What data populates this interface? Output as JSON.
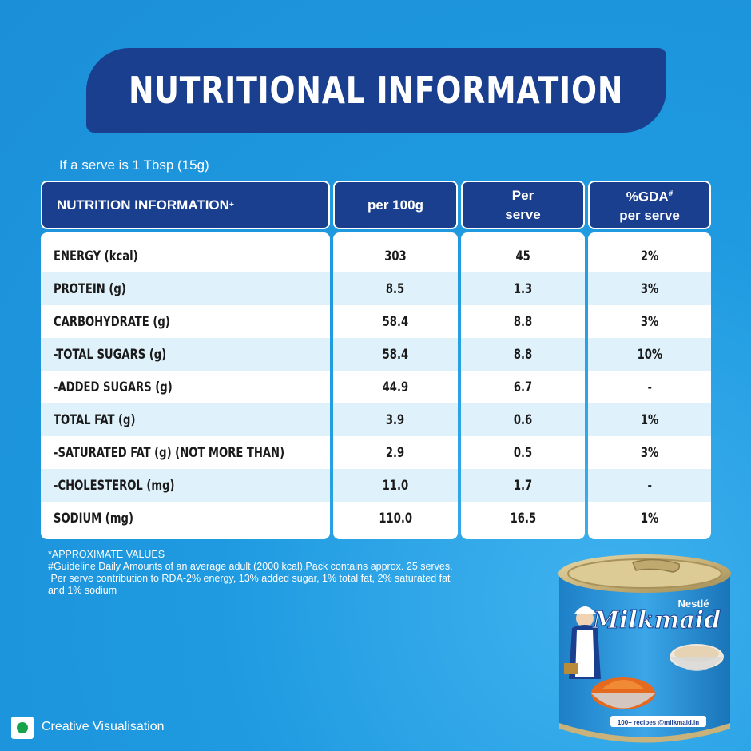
{
  "title": "NUTRITIONAL INFORMATION",
  "serve_note": "If a serve is 1 Tbsp (15g)",
  "headers": {
    "nutrient": "NUTRITION INFORMATION",
    "nutrient_mark": "+",
    "per_100g": "per 100g",
    "per_serve_line1": "Per",
    "per_serve_line2": "serve",
    "gda_line1": "%GDA",
    "gda_mark": "#",
    "gda_line2": "per serve"
  },
  "rows": [
    {
      "name": "ENERGY (kcal)",
      "per_100g": "303",
      "per_serve": "45",
      "gda": "2%"
    },
    {
      "name": "PROTEIN (g)",
      "per_100g": "8.5",
      "per_serve": "1.3",
      "gda": "3%"
    },
    {
      "name": "CARBOHYDRATE (g)",
      "per_100g": "58.4",
      "per_serve": "8.8",
      "gda": "3%"
    },
    {
      "name": "-TOTAL SUGARS (g)",
      "per_100g": "58.4",
      "per_serve": "8.8",
      "gda": "10%"
    },
    {
      "name": "-ADDED SUGARS (g)",
      "per_100g": "44.9",
      "per_serve": "6.7",
      "gda": "-"
    },
    {
      "name": "TOTAL FAT (g)",
      "per_100g": "3.9",
      "per_serve": "0.6",
      "gda": "1%"
    },
    {
      "name": "-SATURATED FAT (g) (NOT MORE THAN)",
      "per_100g": "2.9",
      "per_serve": "0.5",
      "gda": "3%"
    },
    {
      "name": "-CHOLESTEROL (mg)",
      "per_100g": "11.0",
      "per_serve": "1.7",
      "gda": "-"
    },
    {
      "name": "SODIUM (mg)",
      "per_100g": "110.0",
      "per_serve": "16.5",
      "gda": "1%"
    }
  ],
  "footnotes": {
    "line1": "*APPROXIMATE VALUES",
    "line2": "#Guideline Daily Amounts of an average adult (2000 kcal).Pack contains approx. 25 serves.",
    "line3": " Per serve contribution to RDA-2% energy, 13% added sugar, 1% total fat, 2% saturated fat",
    "line4": "and 1% sodium"
  },
  "visual_note": "Creative Visualisation",
  "product": {
    "maker": "Nestlé",
    "brand": "Milkmaid",
    "recipes": "100+ recipes @milkmaid.in"
  },
  "colors": {
    "background": "#1f9ae0",
    "navy": "#193f8e",
    "row_alt": "#dff1fb",
    "veg_green": "#17a34a"
  }
}
